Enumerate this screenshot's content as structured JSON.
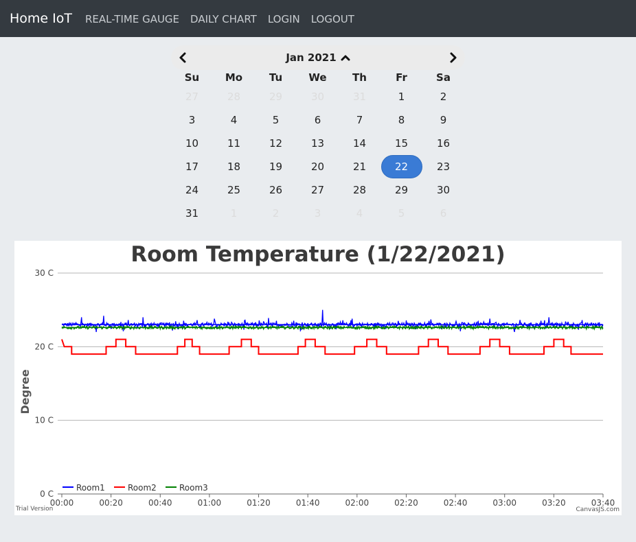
{
  "navbar": {
    "brand": "Home IoT",
    "links": [
      "REAL-TIME GAUGE",
      "DAILY CHART",
      "LOGIN",
      "LOGOUT"
    ]
  },
  "calendar": {
    "title": "Jan 2021",
    "prev_icon": "chevron-left-icon",
    "next_icon": "chevron-right-icon",
    "title_icon": "chevron-up-icon",
    "weekdays": [
      "Su",
      "Mo",
      "Tu",
      "We",
      "Th",
      "Fr",
      "Sa"
    ],
    "weeks": [
      [
        "27",
        "28",
        "29",
        "30",
        "31",
        "1",
        "2"
      ],
      [
        "3",
        "4",
        "5",
        "6",
        "7",
        "8",
        "9"
      ],
      [
        "10",
        "11",
        "12",
        "13",
        "14",
        "15",
        "16"
      ],
      [
        "17",
        "18",
        "19",
        "20",
        "21",
        "22",
        "23"
      ],
      [
        "24",
        "25",
        "26",
        "27",
        "28",
        "29",
        "30"
      ],
      [
        "31",
        "1",
        "2",
        "3",
        "4",
        "5",
        "6"
      ]
    ],
    "muted": [
      [
        0,
        0
      ],
      [
        0,
        1
      ],
      [
        0,
        2
      ],
      [
        0,
        3
      ],
      [
        0,
        4
      ],
      [
        5,
        1
      ],
      [
        5,
        2
      ],
      [
        5,
        3
      ],
      [
        5,
        4
      ],
      [
        5,
        5
      ],
      [
        5,
        6
      ]
    ],
    "selected": [
      3,
      5
    ],
    "selected_color": "#3a7bd5"
  },
  "chart_data": {
    "type": "line",
    "title": "Room Temperature (1/22/2021)",
    "ylabel": "Degree",
    "y_ticks": [
      "0 C",
      "10 C",
      "20 C",
      "30 C"
    ],
    "ylim": [
      0,
      30
    ],
    "x_ticks": [
      "00:00",
      "00:20",
      "00:40",
      "01:00",
      "01:20",
      "01:40",
      "02:00",
      "02:20",
      "02:40",
      "03:00",
      "03:20",
      "03:40"
    ],
    "xlim_minutes": [
      0,
      220
    ],
    "legend_position": "bottom-left",
    "series": [
      {
        "name": "Room1",
        "color": "#0000ff",
        "base": 23.0,
        "noise": 0.6,
        "spikes": [
          [
            8,
            24.0
          ],
          [
            14,
            22.0
          ],
          [
            17,
            24.2
          ],
          [
            25,
            22.1
          ],
          [
            33,
            24.0
          ],
          [
            45,
            22.2
          ],
          [
            62,
            23.8
          ],
          [
            74,
            22.3
          ],
          [
            84,
            23.9
          ],
          [
            97,
            22.2
          ],
          [
            106,
            25.0
          ],
          [
            118,
            23.8
          ],
          [
            130,
            22.4
          ],
          [
            150,
            23.7
          ],
          [
            162,
            22.1
          ],
          [
            174,
            23.8
          ],
          [
            184,
            22.0
          ],
          [
            198,
            24.0
          ],
          [
            210,
            22.3
          ]
        ]
      },
      {
        "name": "Room2",
        "color": "#ff0000",
        "steps": [
          [
            0,
            21
          ],
          [
            1,
            20
          ],
          [
            4,
            20
          ],
          [
            4,
            19
          ],
          [
            18,
            19
          ],
          [
            18,
            20
          ],
          [
            22,
            20
          ],
          [
            22,
            21
          ],
          [
            26,
            21
          ],
          [
            26,
            20
          ],
          [
            30,
            20
          ],
          [
            30,
            19
          ],
          [
            47,
            19
          ],
          [
            47,
            20
          ],
          [
            50,
            20
          ],
          [
            50,
            21
          ],
          [
            53,
            21
          ],
          [
            53,
            20
          ],
          [
            56,
            20
          ],
          [
            56,
            19
          ],
          [
            68,
            19
          ],
          [
            68,
            20
          ],
          [
            73,
            20
          ],
          [
            73,
            21
          ],
          [
            77,
            21
          ],
          [
            77,
            20
          ],
          [
            80,
            20
          ],
          [
            80,
            19
          ],
          [
            96,
            19
          ],
          [
            96,
            20
          ],
          [
            99,
            20
          ],
          [
            99,
            21
          ],
          [
            103,
            21
          ],
          [
            103,
            20
          ],
          [
            107,
            20
          ],
          [
            107,
            19
          ],
          [
            119,
            19
          ],
          [
            119,
            20
          ],
          [
            124,
            20
          ],
          [
            124,
            21
          ],
          [
            128,
            21
          ],
          [
            128,
            20
          ],
          [
            132,
            20
          ],
          [
            132,
            19
          ],
          [
            145,
            19
          ],
          [
            145,
            20
          ],
          [
            149,
            20
          ],
          [
            149,
            21
          ],
          [
            153,
            21
          ],
          [
            153,
            20
          ],
          [
            157,
            20
          ],
          [
            157,
            19
          ],
          [
            170,
            19
          ],
          [
            170,
            20
          ],
          [
            174,
            20
          ],
          [
            174,
            21
          ],
          [
            178,
            21
          ],
          [
            178,
            20
          ],
          [
            182,
            20
          ],
          [
            182,
            19
          ],
          [
            196,
            19
          ],
          [
            196,
            20
          ],
          [
            200,
            20
          ],
          [
            200,
            21
          ],
          [
            204,
            21
          ],
          [
            204,
            20
          ],
          [
            207,
            20
          ],
          [
            207,
            19
          ],
          [
            220,
            19
          ]
        ]
      },
      {
        "name": "Room3",
        "color": "#008000",
        "base": 22.6,
        "noise": 0.35
      }
    ]
  },
  "footer": {
    "trial": "Trial Version",
    "credit": "CanvasJS.com"
  }
}
